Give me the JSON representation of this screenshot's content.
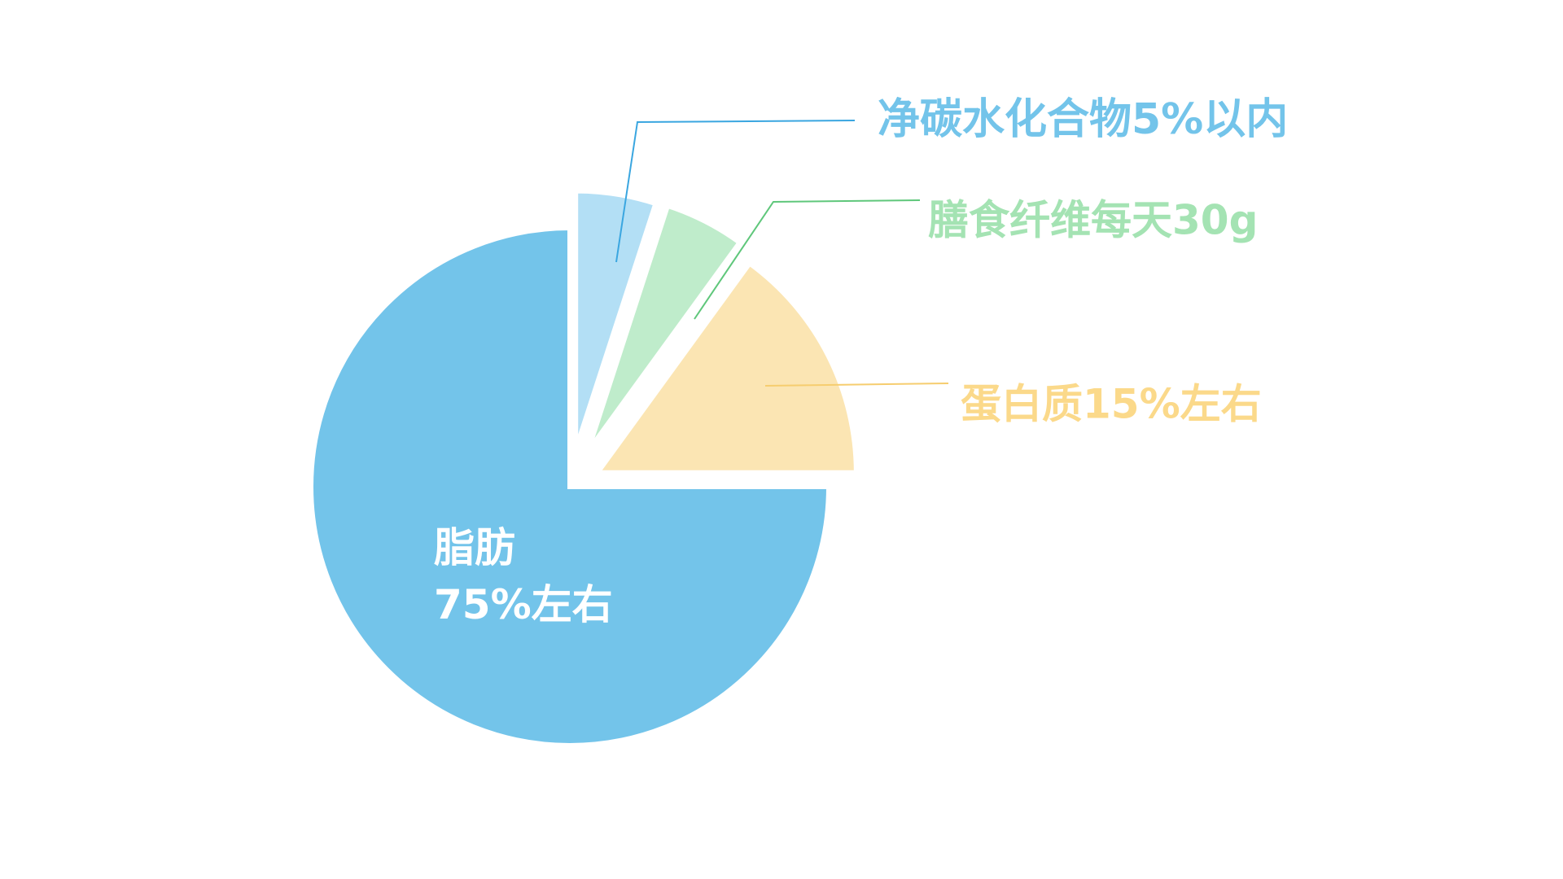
{
  "chart_data": {
    "type": "pie",
    "title": "",
    "slices": [
      {
        "label_line1": "脂肪",
        "label_line2": "75%左右",
        "value": 75,
        "color": "#73c4ea",
        "label_color": "#ffffff"
      },
      {
        "label_line1": "蛋白质15%左右",
        "label_line2": "",
        "value": 15,
        "color": "#fbe5b3",
        "label_color": "#fbd98a",
        "leader_color": "#f6cd6f"
      },
      {
        "label_line1": "膳食纤维每天30g",
        "label_line2": "",
        "value": 5,
        "color": "#bfeccb",
        "label_color": "#a4e3b3",
        "leader_color": "#5fc77b"
      },
      {
        "label_line1": "净碳水化合物5%以内",
        "label_line2": "",
        "value": 5,
        "color": "#b3dff5",
        "label_color": "#73c4ea",
        "leader_color": "#3aa6e0"
      }
    ]
  }
}
